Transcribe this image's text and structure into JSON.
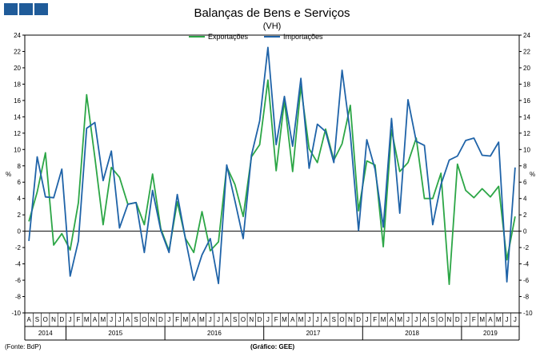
{
  "header": {
    "title": "Balanças de Bens e Serviços",
    "subtitle": "(VH)"
  },
  "footer": {
    "source": "(Fonte: BdP)",
    "credit": "(Gráfico: GEE)"
  },
  "colors": {
    "exportacoes": "#2ca646",
    "importacoes": "#1f63a8",
    "logo": "#1f5b99"
  },
  "chart_data": {
    "type": "line",
    "title": "Balanças de Bens e Serviços",
    "subtitle": "(VH)",
    "y_unit": "%",
    "ylim": [
      -10,
      24
    ],
    "y_ticks": [
      -10,
      -8,
      -6,
      -4,
      -2,
      0,
      2,
      4,
      6,
      8,
      10,
      12,
      14,
      16,
      18,
      20,
      22,
      24
    ],
    "grid": false,
    "legend_position": "top-center",
    "months": [
      "A",
      "S",
      "O",
      "N",
      "D",
      "J",
      "F",
      "M",
      "A",
      "M",
      "J",
      "J",
      "A",
      "S",
      "O",
      "N",
      "D",
      "J",
      "F",
      "M",
      "A",
      "M",
      "J",
      "J",
      "A",
      "S",
      "O",
      "N",
      "D",
      "J",
      "F",
      "M",
      "A",
      "M",
      "J",
      "J",
      "A",
      "S",
      "O",
      "N",
      "D",
      "J",
      "F",
      "M",
      "A",
      "M",
      "J",
      "J",
      "A",
      "S",
      "O",
      "N",
      "D",
      "J",
      "F",
      "M",
      "A",
      "M",
      "J",
      "J"
    ],
    "years": [
      {
        "label": "2014",
        "start": 0,
        "end": 4
      },
      {
        "label": "2015",
        "start": 5,
        "end": 16
      },
      {
        "label": "2016",
        "start": 17,
        "end": 28
      },
      {
        "label": "2017",
        "start": 29,
        "end": 40
      },
      {
        "label": "2018",
        "start": 41,
        "end": 52
      },
      {
        "label": "2019",
        "start": 53,
        "end": 59
      }
    ],
    "series": [
      {
        "name": "Exportações",
        "values": [
          1.2,
          4.8,
          9.6,
          -1.7,
          -0.3,
          -2.3,
          3.5,
          16.7,
          9.0,
          0.8,
          7.8,
          6.6,
          3.3,
          3.5,
          0.8,
          7.0,
          0.3,
          -2.4,
          3.6,
          -0.9,
          -2.6,
          2.4,
          -2.4,
          -1.3,
          7.9,
          5.7,
          1.8,
          9.1,
          10.6,
          18.5,
          7.4,
          16.0,
          7.3,
          17.7,
          10.1,
          8.4,
          12.5,
          8.7,
          10.7,
          15.4,
          2.5,
          8.6,
          8.1,
          -1.9,
          12.4,
          7.3,
          8.4,
          11.4,
          4.0,
          4.0,
          7.1,
          -6.5,
          8.2,
          5.0,
          4.1,
          5.2,
          4.2,
          5.5,
          -3.5,
          1.8
        ]
      },
      {
        "name": "Importações",
        "values": [
          -1.2,
          9.1,
          4.2,
          4.1,
          7.6,
          -5.5,
          -1.2,
          12.6,
          13.3,
          6.2,
          9.8,
          0.4,
          3.3,
          3.5,
          -2.6,
          5.0,
          0.1,
          -2.6,
          4.5,
          -1.0,
          -6.0,
          -2.9,
          -0.9,
          -6.4,
          8.1,
          3.7,
          -0.9,
          9.3,
          13.5,
          22.5,
          10.6,
          16.5,
          10.4,
          18.7,
          7.7,
          13.1,
          12.2,
          8.4,
          19.7,
          11.9,
          0.1,
          11.2,
          7.6,
          0.5,
          13.8,
          2.2,
          16.1,
          11.0,
          10.5,
          0.8,
          5.7,
          8.7,
          9.2,
          11.1,
          11.4,
          9.3,
          9.2,
          10.9,
          -6.2,
          7.8
        ]
      }
    ]
  }
}
